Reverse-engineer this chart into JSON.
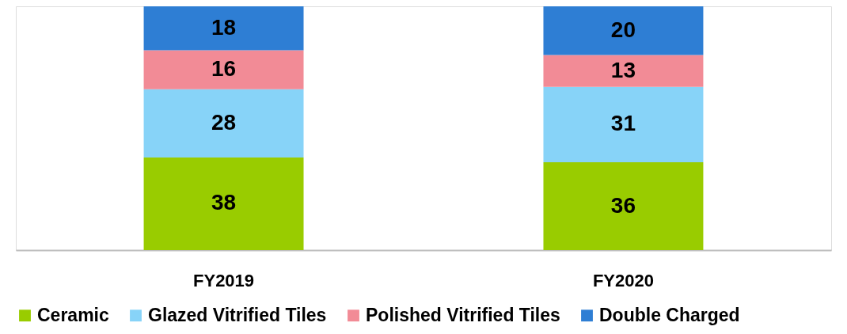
{
  "chart_data": {
    "type": "bar",
    "stacked": true,
    "data_labels": true,
    "legend": "bottom",
    "grid": false,
    "categories": [
      "FY2019",
      "FY2020"
    ],
    "series": [
      {
        "name": "Ceramic",
        "color": "#99cc00",
        "values": [
          38,
          36
        ]
      },
      {
        "name": "Glazed Vitrified Tiles",
        "color": "#87d3f8",
        "values": [
          28,
          31
        ]
      },
      {
        "name": "Polished Vitrified Tiles",
        "color": "#f28b96",
        "values": [
          16,
          13
        ]
      },
      {
        "name": "Double Charged",
        "color": "#2e7ed4",
        "values": [
          18,
          20
        ]
      }
    ]
  }
}
